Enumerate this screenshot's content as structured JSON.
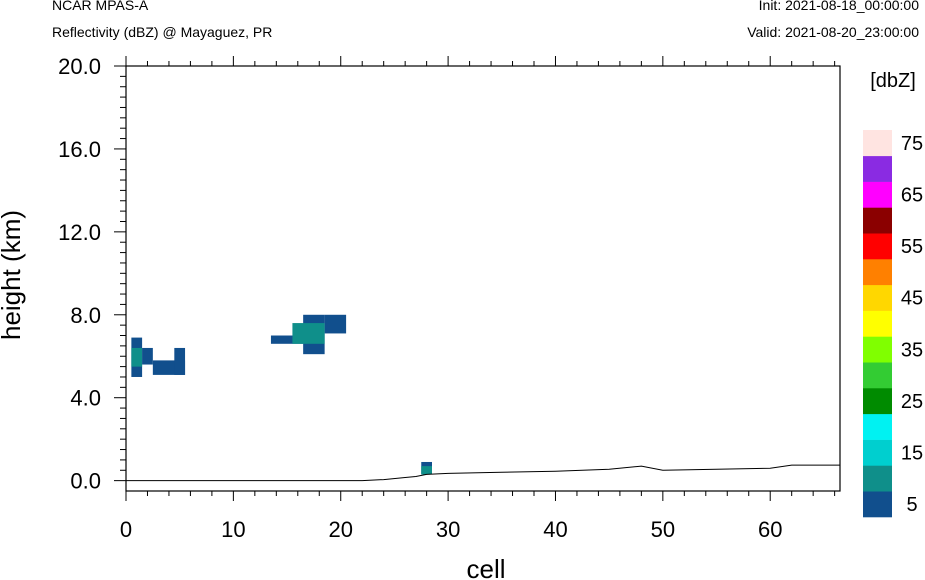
{
  "header": {
    "model": "NCAR MPAS-A",
    "field": "Reflectivity (dBZ) @ Mayaguez, PR",
    "init": "Init: 2021-08-18_00:00:00",
    "valid": "Valid: 2021-08-20_23:00:00"
  },
  "chart_data": {
    "type": "heatmap",
    "xlabel": "cell",
    "ylabel": "height (km)",
    "xlim": [
      0,
      66.5
    ],
    "ylim": [
      -0.5,
      20.0
    ],
    "x_ticks": [
      0,
      10,
      20,
      30,
      40,
      50,
      60
    ],
    "y_ticks": [
      0.0,
      4.0,
      8.0,
      12.0,
      16.0,
      20.0
    ],
    "y_tick_labels": [
      "0.0",
      "4.0",
      "8.0",
      "12.0",
      "16.0",
      "20.0"
    ],
    "grid": false,
    "colorbar": {
      "title": "[dbZ]",
      "levels": [
        5,
        10,
        15,
        20,
        25,
        30,
        35,
        40,
        45,
        50,
        55,
        60,
        65,
        70,
        75
      ],
      "labels": [
        "5",
        "15",
        "25",
        "35",
        "45",
        "55",
        "65",
        "75"
      ],
      "colors": [
        "#114f8d",
        "#0f8f8a",
        "#00cfcf",
        "#00f2f2",
        "#008b00",
        "#33cc33",
        "#80ff00",
        "#ffff00",
        "#ffd700",
        "#ff8000",
        "#ff0000",
        "#8b0000",
        "#ff00ff",
        "#8a2be2",
        "#ffe4e1"
      ]
    },
    "cells": [
      {
        "x0": 0.5,
        "x1": 1.5,
        "y0": 5.0,
        "y1": 6.9,
        "dbz": 5
      },
      {
        "x0": 0.5,
        "x1": 1.5,
        "y0": 5.5,
        "y1": 6.4,
        "dbz": 10
      },
      {
        "x0": 1.5,
        "x1": 2.5,
        "y0": 5.6,
        "y1": 6.4,
        "dbz": 5
      },
      {
        "x0": 2.5,
        "x1": 5.5,
        "y0": 5.1,
        "y1": 5.8,
        "dbz": 5
      },
      {
        "x0": 4.5,
        "x1": 5.5,
        "y0": 5.1,
        "y1": 6.4,
        "dbz": 5
      },
      {
        "x0": 13.5,
        "x1": 16.5,
        "y0": 6.6,
        "y1": 7.0,
        "dbz": 5
      },
      {
        "x0": 16.5,
        "x1": 18.5,
        "y0": 6.1,
        "y1": 8.0,
        "dbz": 5
      },
      {
        "x0": 18.5,
        "x1": 20.5,
        "y0": 7.1,
        "y1": 8.0,
        "dbz": 5
      },
      {
        "x0": 15.5,
        "x1": 18.5,
        "y0": 6.6,
        "y1": 7.6,
        "dbz": 10
      },
      {
        "x0": 27.5,
        "x1": 28.5,
        "y0": 0.3,
        "y1": 0.9,
        "dbz": 5
      },
      {
        "x0": 27.5,
        "x1": 28.5,
        "y0": 0.3,
        "y1": 0.7,
        "dbz": 10
      }
    ],
    "terrain": {
      "x": [
        0,
        22,
        24,
        26,
        27,
        28,
        30,
        35,
        40,
        45,
        48,
        50,
        55,
        60,
        62,
        66.5
      ],
      "y": [
        0.0,
        0.0,
        0.05,
        0.15,
        0.2,
        0.3,
        0.35,
        0.4,
        0.45,
        0.55,
        0.7,
        0.5,
        0.55,
        0.6,
        0.75,
        0.75
      ]
    }
  }
}
